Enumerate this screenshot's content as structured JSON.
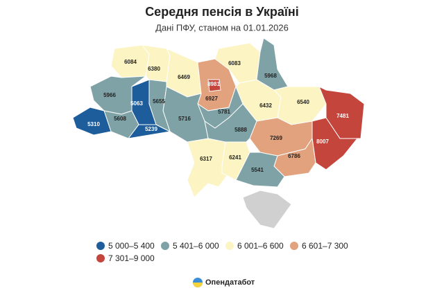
{
  "chart_data": {
    "type": "choropleth",
    "title": "Середня пенсія в Україні",
    "subtitle": "Дані ПФУ, станом на 01.01.2026",
    "legend": [
      {
        "label": "5 000–5 400",
        "range": [
          5000,
          5400
        ],
        "color": "#1d5d9b"
      },
      {
        "label": "5 401–6 000",
        "range": [
          5401,
          6000
        ],
        "color": "#7fa2a6"
      },
      {
        "label": "6 001–6 600",
        "range": [
          6001,
          6600
        ],
        "color": "#fcf4c2"
      },
      {
        "label": "6 601–7 300",
        "range": [
          6601,
          7300
        ],
        "color": "#e1a27d"
      },
      {
        "label": "7 301–9 000",
        "range": [
          7301,
          9000
        ],
        "color": "#c4453c"
      }
    ],
    "regions": [
      6084,
      6380,
      6469,
      6927,
      8981,
      6083,
      5968,
      6432,
      6540,
      7481,
      8007,
      7269,
      6786,
      5541,
      6317,
      6241,
      5781,
      5888,
      5716,
      5655,
      5063,
      5966,
      5608,
      5310,
      5239
    ],
    "source": "Опендатабот"
  }
}
